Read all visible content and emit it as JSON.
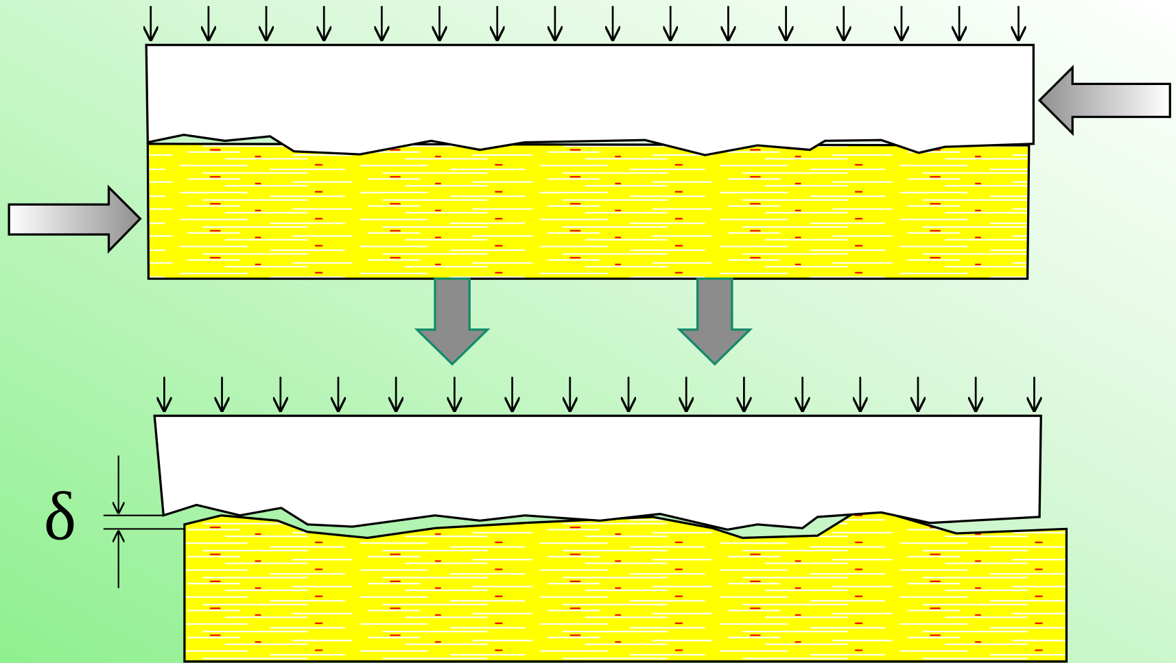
{
  "labels": {
    "gap": "δ"
  }
}
